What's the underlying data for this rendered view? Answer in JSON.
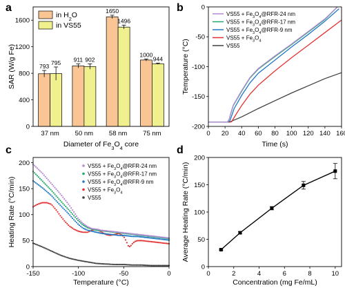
{
  "colors": {
    "bar_h2o": "#fac594",
    "bar_vs55": "#f0f08f",
    "rfr24": "#b388d4",
    "rfr17": "#20a868",
    "rfr9": "#1f77c4",
    "fe3o4": "#e53030",
    "vs55": "#404040"
  },
  "chart_data": [
    {
      "panel": "a",
      "type": "bar",
      "categories": [
        "37 nm",
        "50 nm",
        "58 nm",
        "75 nm"
      ],
      "series": [
        {
          "name": "in H₂O",
          "values": [
            793,
            911,
            1650,
            1000
          ],
          "errors": [
            50,
            30,
            25,
            15
          ]
        },
        {
          "name": "in VS55",
          "values": [
            795,
            902,
            1496,
            944
          ],
          "errors": [
            100,
            40,
            30,
            10
          ]
        }
      ],
      "value_labels": [
        [
          "793",
          "911",
          "1650",
          "1000"
        ],
        [
          "795",
          "902",
          "1496",
          "944"
        ]
      ],
      "xlabel": "Diameter of Fe₃O₄ core",
      "ylabel": "SAR (W/g Fe)",
      "ylim": [
        0,
        1800
      ],
      "yticks": [
        0,
        400,
        800,
        1200,
        1600
      ],
      "legend": "top-left"
    },
    {
      "panel": "b",
      "type": "line",
      "xlabel": "Time (s)",
      "ylabel": "Temperature (°C)",
      "xlim": [
        0,
        160
      ],
      "ylim": [
        -200,
        0
      ],
      "xticks": [
        0,
        20,
        40,
        60,
        80,
        100,
        120,
        140,
        160
      ],
      "yticks": [
        -200,
        -150,
        -100,
        -50,
        0
      ],
      "legend": "top-left",
      "series": [
        {
          "name": "VS55 + Fe₃O₄@RFR-24 nm",
          "x": [
            0,
            20,
            23,
            25,
            27,
            30,
            40,
            50,
            60,
            80,
            100,
            120,
            140,
            155
          ],
          "y": [
            -193,
            -193,
            -193,
            -188,
            -177,
            -164,
            -140,
            -118,
            -103,
            -82,
            -62,
            -41,
            -20,
            0
          ]
        },
        {
          "name": "VS55 + Fe₃O₄@RFR-17 nm",
          "x": [
            0,
            20,
            23,
            25,
            27,
            30,
            40,
            50,
            60,
            80,
            100,
            120,
            140,
            155
          ],
          "y": [
            -193,
            -193,
            -193,
            -188,
            -178,
            -165,
            -141,
            -119,
            -104,
            -83,
            -63,
            -42,
            -21,
            0
          ]
        },
        {
          "name": "VS55 + Fe₃O₄@RFR-9 nm",
          "x": [
            0,
            20,
            24,
            26,
            28,
            31,
            40,
            50,
            60,
            80,
            100,
            120,
            140,
            157
          ],
          "y": [
            -193,
            -193,
            -193,
            -190,
            -182,
            -170,
            -148,
            -127,
            -111,
            -89,
            -67,
            -46,
            -24,
            -3
          ]
        },
        {
          "name": "VS55 + Fe₃O₄",
          "x": [
            0,
            20,
            26,
            28,
            31,
            35,
            40,
            50,
            60,
            80,
            100,
            120,
            140,
            160
          ],
          "y": [
            -193,
            -193,
            -193,
            -192,
            -185,
            -176,
            -165,
            -146,
            -131,
            -107,
            -85,
            -64,
            -43,
            -22
          ]
        },
        {
          "name": "VS55",
          "x": [
            0,
            20,
            25,
            30,
            40,
            60,
            80,
            100,
            120,
            140,
            160
          ],
          "y": [
            -193,
            -193,
            -193,
            -190,
            -184,
            -170,
            -157,
            -144,
            -132,
            -120,
            -110
          ]
        }
      ]
    },
    {
      "panel": "c",
      "type": "scatter",
      "xlabel": "Temperature (°C)",
      "ylabel": "Heating Rate (°C/min)",
      "xlim": [
        -150,
        0
      ],
      "ylim": [
        0,
        210
      ],
      "xticks": [
        -150,
        -100,
        -50,
        0
      ],
      "yticks": [
        0,
        50,
        100,
        150,
        200
      ],
      "legend": "top-right",
      "series": [
        {
          "name": "VS55 + Fe₃O₄@RFR-24 nm",
          "x": [
            -150,
            -140,
            -130,
            -120,
            -110,
            -105,
            -100,
            -95,
            -90,
            -85,
            -80,
            -75,
            -70,
            -65,
            -60,
            -55,
            -50,
            -45,
            -40,
            -35,
            -30,
            -25,
            -20,
            -15,
            -10,
            -5,
            0
          ],
          "y": [
            197,
            180,
            160,
            140,
            118,
            105,
            92,
            83,
            77,
            73,
            72,
            70,
            69,
            68,
            67,
            66,
            65,
            64,
            63,
            62,
            61,
            60,
            59,
            58,
            57,
            56,
            55
          ]
        },
        {
          "name": "VS55 + Fe₃O₄@RFR-17 nm",
          "x": [
            -150,
            -140,
            -130,
            -120,
            -110,
            -105,
            -100,
            -95,
            -90,
            -85,
            -80,
            -75,
            -70,
            -65,
            -60,
            -55,
            -50,
            -45,
            -40,
            -35,
            -30,
            -25,
            -20,
            -15,
            -10,
            -5,
            0
          ],
          "y": [
            183,
            165,
            147,
            127,
            108,
            98,
            88,
            80,
            75,
            72,
            70,
            69,
            68,
            67,
            66,
            65,
            64,
            63,
            62,
            61,
            60,
            59,
            58,
            57,
            56,
            55,
            54
          ]
        },
        {
          "name": "VS55 + Fe₃O₄@RFR-9 nm",
          "x": [
            -150,
            -140,
            -130,
            -120,
            -110,
            -105,
            -100,
            -95,
            -90,
            -85,
            -80,
            -75,
            -70,
            -65,
            -60,
            -55,
            -50,
            -45,
            -40,
            -35,
            -30,
            -25,
            -20,
            -15,
            -10,
            -5,
            0
          ],
          "y": [
            165,
            152,
            137,
            118,
            100,
            90,
            81,
            74,
            70,
            68,
            66,
            64,
            63,
            62,
            61,
            60,
            60,
            59,
            58,
            58,
            57,
            56,
            55,
            54,
            53,
            52,
            51
          ]
        },
        {
          "name": "VS55 + Fe₃O₄",
          "x": [
            -150,
            -145,
            -140,
            -135,
            -130,
            -125,
            -120,
            -115,
            -110,
            -105,
            -100,
            -95,
            -90,
            -85,
            -80,
            -75,
            -70,
            -65,
            -60,
            -55,
            -50,
            -47,
            -45,
            -43,
            -41,
            -38,
            -35,
            -30,
            -25,
            -20,
            -15,
            -10,
            -5,
            0
          ],
          "y": [
            115,
            120,
            123,
            123,
            120,
            110,
            98,
            87,
            78,
            72,
            68,
            66,
            66,
            70,
            72,
            67,
            62,
            60,
            62,
            64,
            58,
            48,
            40,
            38,
            43,
            48,
            50,
            50,
            49,
            48,
            47,
            46,
            45,
            44
          ]
        },
        {
          "name": "VS55",
          "x": [
            -150,
            -140,
            -130,
            -120,
            -110,
            -100,
            -90,
            -80,
            -70,
            -60,
            -50,
            -40,
            -30,
            -20,
            -10,
            0
          ],
          "y": [
            45,
            38,
            30,
            22,
            16,
            12,
            9,
            6,
            5,
            4,
            4,
            3,
            3,
            2,
            2,
            2
          ]
        }
      ]
    },
    {
      "panel": "d",
      "type": "line",
      "xlabel": "Concentration (mg Fe/mL)",
      "ylabel": "Average Heating Rate (°C/min)",
      "xlim": [
        0,
        10.5
      ],
      "ylim": [
        0,
        200
      ],
      "xticks": [
        0,
        2,
        4,
        6,
        8,
        10
      ],
      "yticks": [
        0,
        50,
        100,
        150,
        200
      ],
      "x": [
        1,
        2.5,
        5,
        7.5,
        10
      ],
      "y": [
        31,
        62,
        107,
        149,
        175
      ],
      "errors": [
        1,
        2,
        3,
        7,
        14
      ]
    }
  ]
}
